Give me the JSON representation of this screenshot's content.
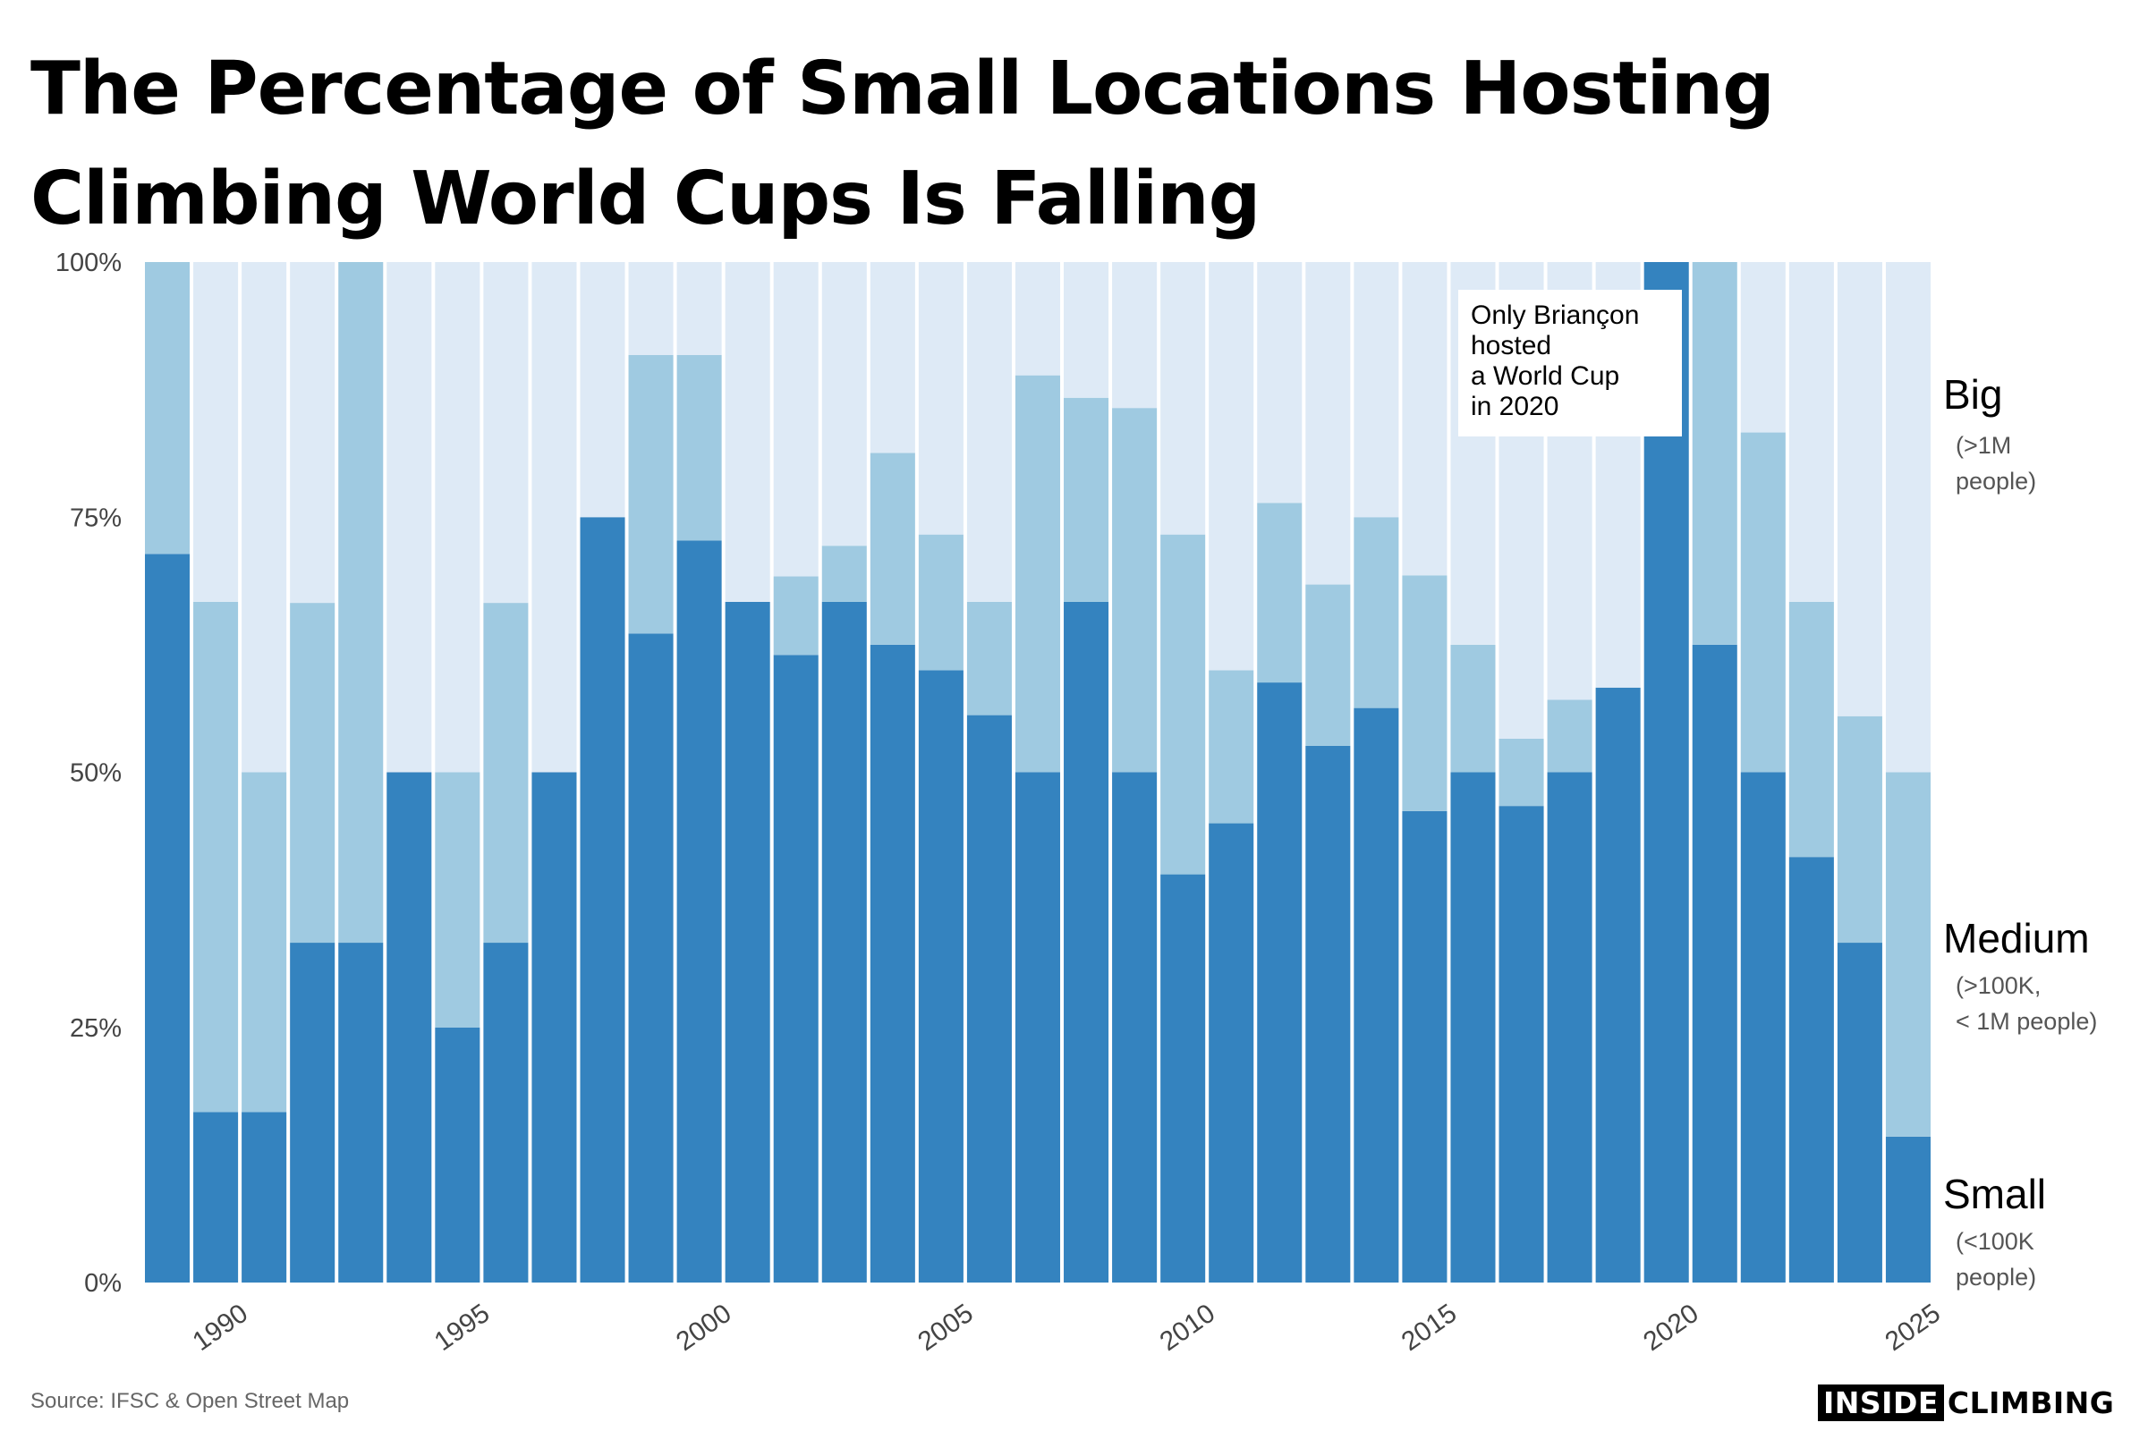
{
  "title": "The Percentage of Small Locations Hosting Climbing World Cups Is Falling",
  "source": "Source: IFSC & Open Street Map",
  "logo": {
    "part1": "INSIDE",
    "part2": "CLIMBING"
  },
  "annotation": "Only Briançon\nhosted\na World Cup\nin 2020",
  "legend": {
    "big": {
      "label": "Big",
      "sub": "(>1M\npeople)"
    },
    "medium": {
      "label": "Medium",
      "sub": "(>100K,\n< 1M people)"
    },
    "small": {
      "label": "Small",
      "sub": "(<100K\npeople)"
    }
  },
  "colors": {
    "small": "#3483bf",
    "medium": "#9fcae1",
    "big": "#deeaf6",
    "axis_text": "#444444"
  },
  "chart_data": {
    "type": "bar",
    "stacked": true,
    "x": [
      1989,
      1990,
      1991,
      1992,
      1993,
      1994,
      1995,
      1996,
      1997,
      1998,
      1999,
      2000,
      2001,
      2002,
      2003,
      2004,
      2005,
      2006,
      2007,
      2008,
      2009,
      2010,
      2011,
      2012,
      2013,
      2014,
      2015,
      2016,
      2017,
      2018,
      2019,
      2020,
      2021,
      2022,
      2023,
      2024,
      2025
    ],
    "series": [
      {
        "name": "Small",
        "values": [
          71.4,
          16.7,
          16.7,
          33.3,
          33.3,
          50,
          25,
          33.3,
          50,
          75,
          63.6,
          72.7,
          66.7,
          61.5,
          66.7,
          62.5,
          60,
          55.6,
          50,
          66.7,
          50,
          40,
          45,
          58.8,
          52.6,
          56.3,
          46.2,
          50,
          46.7,
          50,
          58.3,
          100,
          62.5,
          50,
          41.7,
          33.3,
          14.3
        ]
      },
      {
        "name": "Medium",
        "values": [
          28.6,
          50,
          33.3,
          33.3,
          66.7,
          0,
          25,
          33.3,
          0,
          0,
          27.3,
          18.2,
          0,
          7.7,
          5.5,
          18.8,
          13.3,
          11.1,
          38.9,
          20,
          35.7,
          33.3,
          15,
          17.6,
          15.8,
          18.7,
          23.1,
          12.5,
          6.6,
          7.1,
          0,
          0,
          37.5,
          33.3,
          25,
          22.2,
          35.7
        ]
      },
      {
        "name": "Big",
        "values": [
          0,
          33.3,
          50,
          33.4,
          0,
          50,
          50,
          33.4,
          50,
          25,
          9.1,
          9.1,
          33.3,
          30.8,
          27.8,
          18.7,
          26.7,
          33.3,
          11.1,
          13.3,
          14.3,
          26.7,
          40,
          23.6,
          31.6,
          25,
          30.7,
          37.5,
          46.7,
          42.9,
          41.7,
          0,
          0,
          16.7,
          33.3,
          44.5,
          50
        ]
      }
    ],
    "xticks": [
      1990,
      1995,
      2000,
      2005,
      2010,
      2015,
      2020,
      2025
    ],
    "yticks": [
      0,
      25,
      50,
      75,
      100
    ],
    "ytick_labels": [
      "0%",
      "25%",
      "50%",
      "75%",
      "100%"
    ],
    "ylim": [
      0,
      100
    ],
    "xlabel": "",
    "ylabel": ""
  }
}
